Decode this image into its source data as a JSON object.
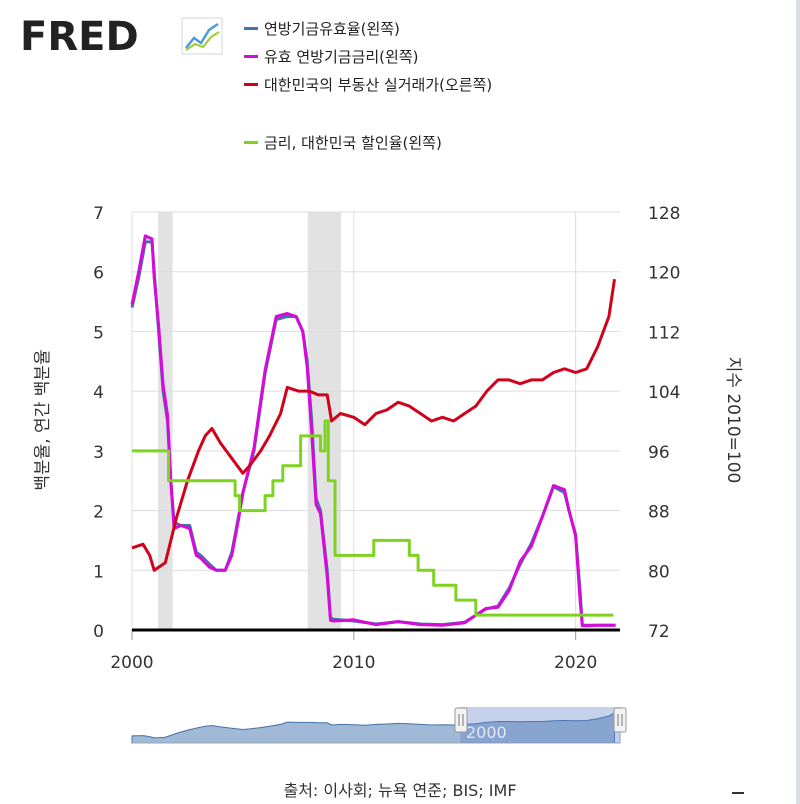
{
  "brand": "FRED",
  "legend": [
    {
      "label": "연방기금유효율(왼쪽)",
      "color": "#4572a7"
    },
    {
      "label": "유효 연방기금금리(왼쪽)",
      "color": "#d40bd9"
    },
    {
      "label": "대한민국의 부동산 실거래가(오른쪽)",
      "color": "#d0021b"
    },
    {
      "label": "금리, 대한민국 할인율(왼쪽)",
      "color": "#7ed321"
    }
  ],
  "source": "출처: 이사회; 뉴욕 연준; BIS; IMF",
  "chart_data": {
    "type": "line",
    "ylabel_left": "백분율, 연간 백분율",
    "ylabel_right": "지수 2010=100",
    "xlim": [
      2000,
      2022
    ],
    "ylim_left": [
      0,
      7
    ],
    "ylim_right": [
      72,
      128
    ],
    "xticks": [
      {
        "value": 2000,
        "label": "2000"
      },
      {
        "value": 2010,
        "label": "2010"
      },
      {
        "value": 2020,
        "label": "2020"
      }
    ],
    "yticks_left": [
      0,
      1,
      2,
      3,
      4,
      5,
      6,
      7
    ],
    "yticks_right": [
      72,
      80,
      88,
      96,
      104,
      112,
      120,
      128
    ],
    "recessions": [
      [
        2001.17,
        2001.83
      ],
      [
        2007.92,
        2009.42
      ]
    ],
    "series": [
      {
        "name": "연방기금유효율(왼쪽)",
        "axis": "left",
        "color": "#4572a7",
        "x": [
          2000.0,
          2000.3,
          2000.6,
          2000.9,
          2001.0,
          2001.2,
          2001.4,
          2001.6,
          2001.75,
          2001.9,
          2002.2,
          2002.6,
          2002.9,
          2003.1,
          2003.5,
          2003.8,
          2004.2,
          2004.5,
          2004.8,
          2005.0,
          2005.5,
          2006.0,
          2006.5,
          2007.0,
          2007.4,
          2007.7,
          2007.9,
          2008.1,
          2008.3,
          2008.5,
          2008.8,
          2008.95,
          2009.1,
          2010.0,
          2011.0,
          2012.0,
          2013.0,
          2014.0,
          2015.0,
          2015.95,
          2016.5,
          2017.0,
          2017.5,
          2018.0,
          2018.5,
          2019.0,
          2019.5,
          2019.7,
          2020.0,
          2020.2,
          2020.3,
          2021.0,
          2021.8
        ],
        "y": [
          5.4,
          5.9,
          6.5,
          6.5,
          6.0,
          5.0,
          4.0,
          3.5,
          2.5,
          1.8,
          1.75,
          1.75,
          1.3,
          1.25,
          1.1,
          1.0,
          1.0,
          1.3,
          1.9,
          2.3,
          3.0,
          4.3,
          5.2,
          5.25,
          5.25,
          5.0,
          4.5,
          3.5,
          2.2,
          2.0,
          1.0,
          0.2,
          0.18,
          0.15,
          0.1,
          0.14,
          0.1,
          0.09,
          0.13,
          0.35,
          0.4,
          0.7,
          1.1,
          1.45,
          1.9,
          2.4,
          2.3,
          2.0,
          1.6,
          0.65,
          0.08,
          0.08,
          0.08
        ]
      },
      {
        "name": "유효 연방기금금리(왼쪽)",
        "axis": "left",
        "color": "#d40bd9",
        "x": [
          2000.0,
          2000.3,
          2000.6,
          2000.9,
          2001.0,
          2001.2,
          2001.4,
          2001.6,
          2001.75,
          2001.9,
          2002.2,
          2002.6,
          2002.9,
          2003.1,
          2003.5,
          2003.8,
          2004.2,
          2004.5,
          2004.8,
          2005.0,
          2005.5,
          2006.0,
          2006.5,
          2007.0,
          2007.4,
          2007.7,
          2007.9,
          2008.1,
          2008.3,
          2008.5,
          2008.8,
          2008.95,
          2009.1,
          2010.0,
          2011.0,
          2012.0,
          2013.0,
          2014.0,
          2015.0,
          2015.95,
          2016.5,
          2017.0,
          2017.5,
          2018.0,
          2018.5,
          2019.0,
          2019.5,
          2019.7,
          2020.0,
          2020.2,
          2020.3,
          2021.0,
          2021.8
        ],
        "y": [
          5.45,
          6.0,
          6.6,
          6.55,
          5.9,
          5.1,
          4.1,
          3.6,
          2.5,
          1.7,
          1.75,
          1.7,
          1.25,
          1.2,
          1.05,
          1.0,
          1.0,
          1.25,
          1.85,
          2.3,
          3.05,
          4.35,
          5.25,
          5.3,
          5.25,
          5.0,
          4.4,
          3.3,
          2.1,
          1.95,
          0.9,
          0.16,
          0.15,
          0.17,
          0.09,
          0.14,
          0.09,
          0.08,
          0.12,
          0.36,
          0.38,
          0.66,
          1.15,
          1.4,
          1.9,
          2.42,
          2.35,
          2.0,
          1.58,
          0.5,
          0.07,
          0.08,
          0.08
        ]
      },
      {
        "name": "대한민국의 부동산 실거래가(오른쪽)",
        "axis": "right",
        "color": "#d0021b",
        "x": [
          2000.0,
          2000.5,
          2000.8,
          2001.0,
          2001.5,
          2002.0,
          2002.5,
          2003.0,
          2003.3,
          2003.6,
          2004.0,
          2004.5,
          2005.0,
          2005.3,
          2005.8,
          2006.2,
          2006.7,
          2007.0,
          2007.5,
          2008.0,
          2008.4,
          2008.8,
          2009.0,
          2009.4,
          2010.0,
          2010.5,
          2011.0,
          2011.5,
          2012.0,
          2012.5,
          2013.0,
          2013.5,
          2014.0,
          2014.5,
          2015.0,
          2015.5,
          2016.0,
          2016.5,
          2017.0,
          2017.5,
          2018.0,
          2018.5,
          2019.0,
          2019.5,
          2020.0,
          2020.5,
          2021.0,
          2021.5,
          2021.75
        ],
        "y": [
          83,
          83.5,
          82,
          80,
          81,
          87,
          92,
          96,
          98,
          99,
          97,
          95,
          93,
          94,
          96,
          98,
          101,
          104.5,
          104,
          104,
          103.5,
          103.5,
          100,
          101,
          100.5,
          99.5,
          101,
          101.5,
          102.5,
          102,
          101,
          100,
          100.5,
          100,
          101,
          102,
          104,
          105.5,
          105.5,
          105,
          105.5,
          105.5,
          106.5,
          107,
          106.5,
          107,
          110,
          114,
          119
        ]
      },
      {
        "name": "금리, 대한민국 할인율(왼쪽)",
        "axis": "left",
        "color": "#7ed321",
        "x": [
          2000.0,
          2001.65,
          2001.65,
          2004.65,
          2004.65,
          2004.85,
          2004.85,
          2006.0,
          2006.0,
          2006.35,
          2006.35,
          2006.8,
          2006.8,
          2007.6,
          2007.6,
          2008.5,
          2008.5,
          2008.7,
          2008.7,
          2008.85,
          2008.85,
          2009.15,
          2009.15,
          2010.9,
          2010.9,
          2012.5,
          2012.5,
          2012.9,
          2012.9,
          2013.6,
          2013.6,
          2014.6,
          2014.6,
          2015.5,
          2015.5,
          2016.3,
          2016.3,
          2020.3,
          2020.3,
          2021.7
        ],
        "y": [
          3.0,
          3.0,
          2.5,
          2.5,
          2.25,
          2.25,
          2.0,
          2.0,
          2.25,
          2.25,
          2.5,
          2.5,
          2.75,
          2.75,
          3.25,
          3.25,
          3.0,
          3.0,
          3.5,
          3.5,
          2.5,
          2.5,
          1.25,
          1.25,
          1.5,
          1.5,
          1.25,
          1.25,
          1.0,
          1.0,
          0.75,
          0.75,
          0.5,
          0.5,
          0.25,
          0.25,
          0.25,
          0.25,
          0.25,
          0.25
        ]
      }
    ]
  }
}
